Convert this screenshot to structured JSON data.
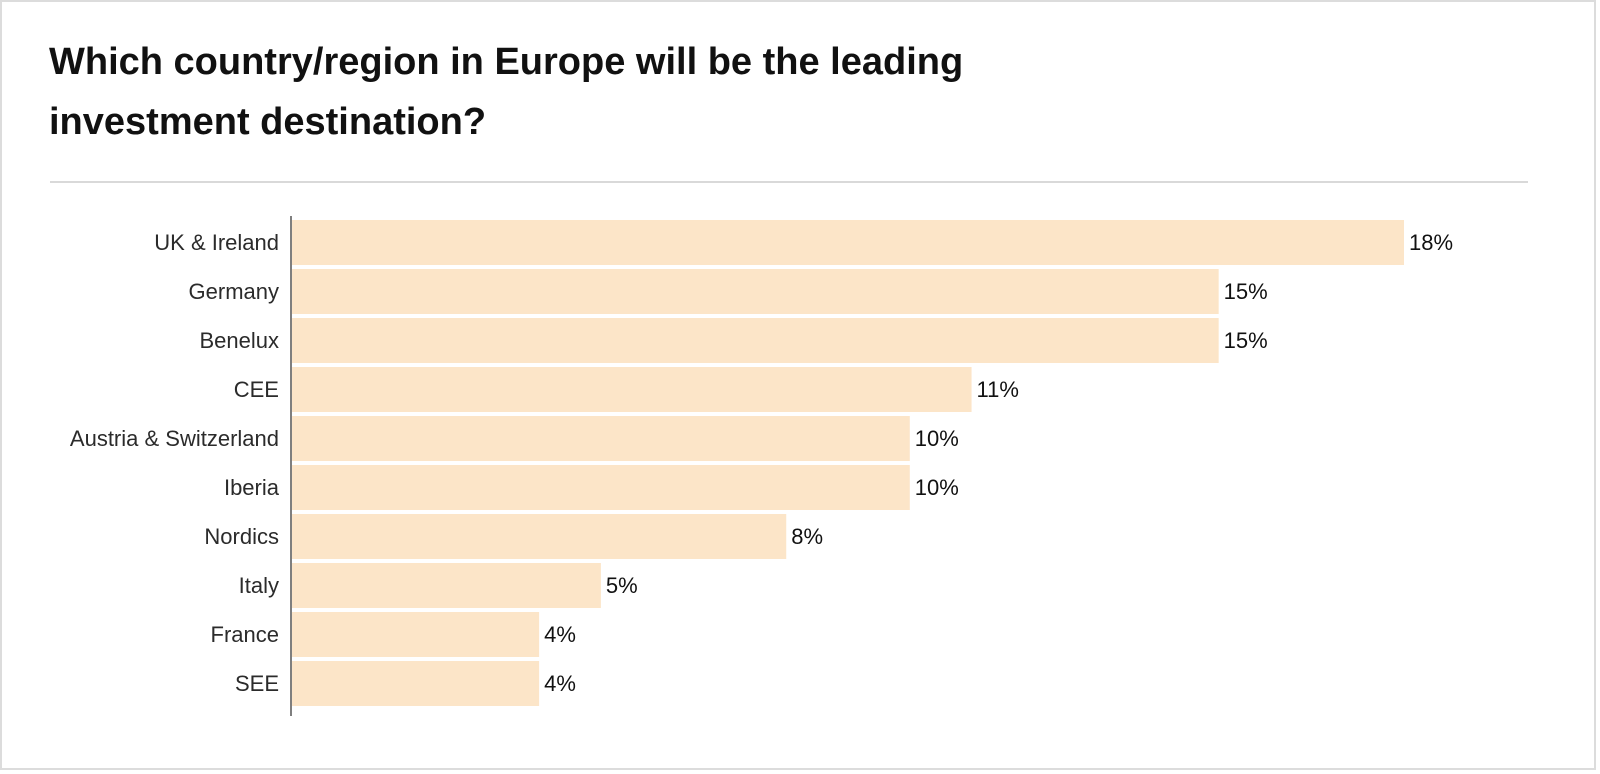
{
  "chart_data": {
    "type": "bar",
    "orientation": "horizontal",
    "title": "Which country/region in Europe will be the leading investment destination?",
    "categories": [
      "UK & Ireland",
      "Germany",
      "Benelux",
      "CEE",
      "Austria & Switzerland",
      "Iberia",
      "Nordics",
      "Italy",
      "France",
      "SEE"
    ],
    "values": [
      18,
      15,
      15,
      11,
      10,
      10,
      8,
      5,
      4,
      4
    ],
    "value_labels": [
      "18%",
      "15%",
      "15%",
      "11%",
      "10%",
      "10%",
      "8%",
      "5%",
      "4%",
      "4%"
    ],
    "unit": "%",
    "xlim": [
      0,
      18
    ],
    "grid": false,
    "bar_color": "#fce5c8",
    "axis_color": "#555555"
  }
}
